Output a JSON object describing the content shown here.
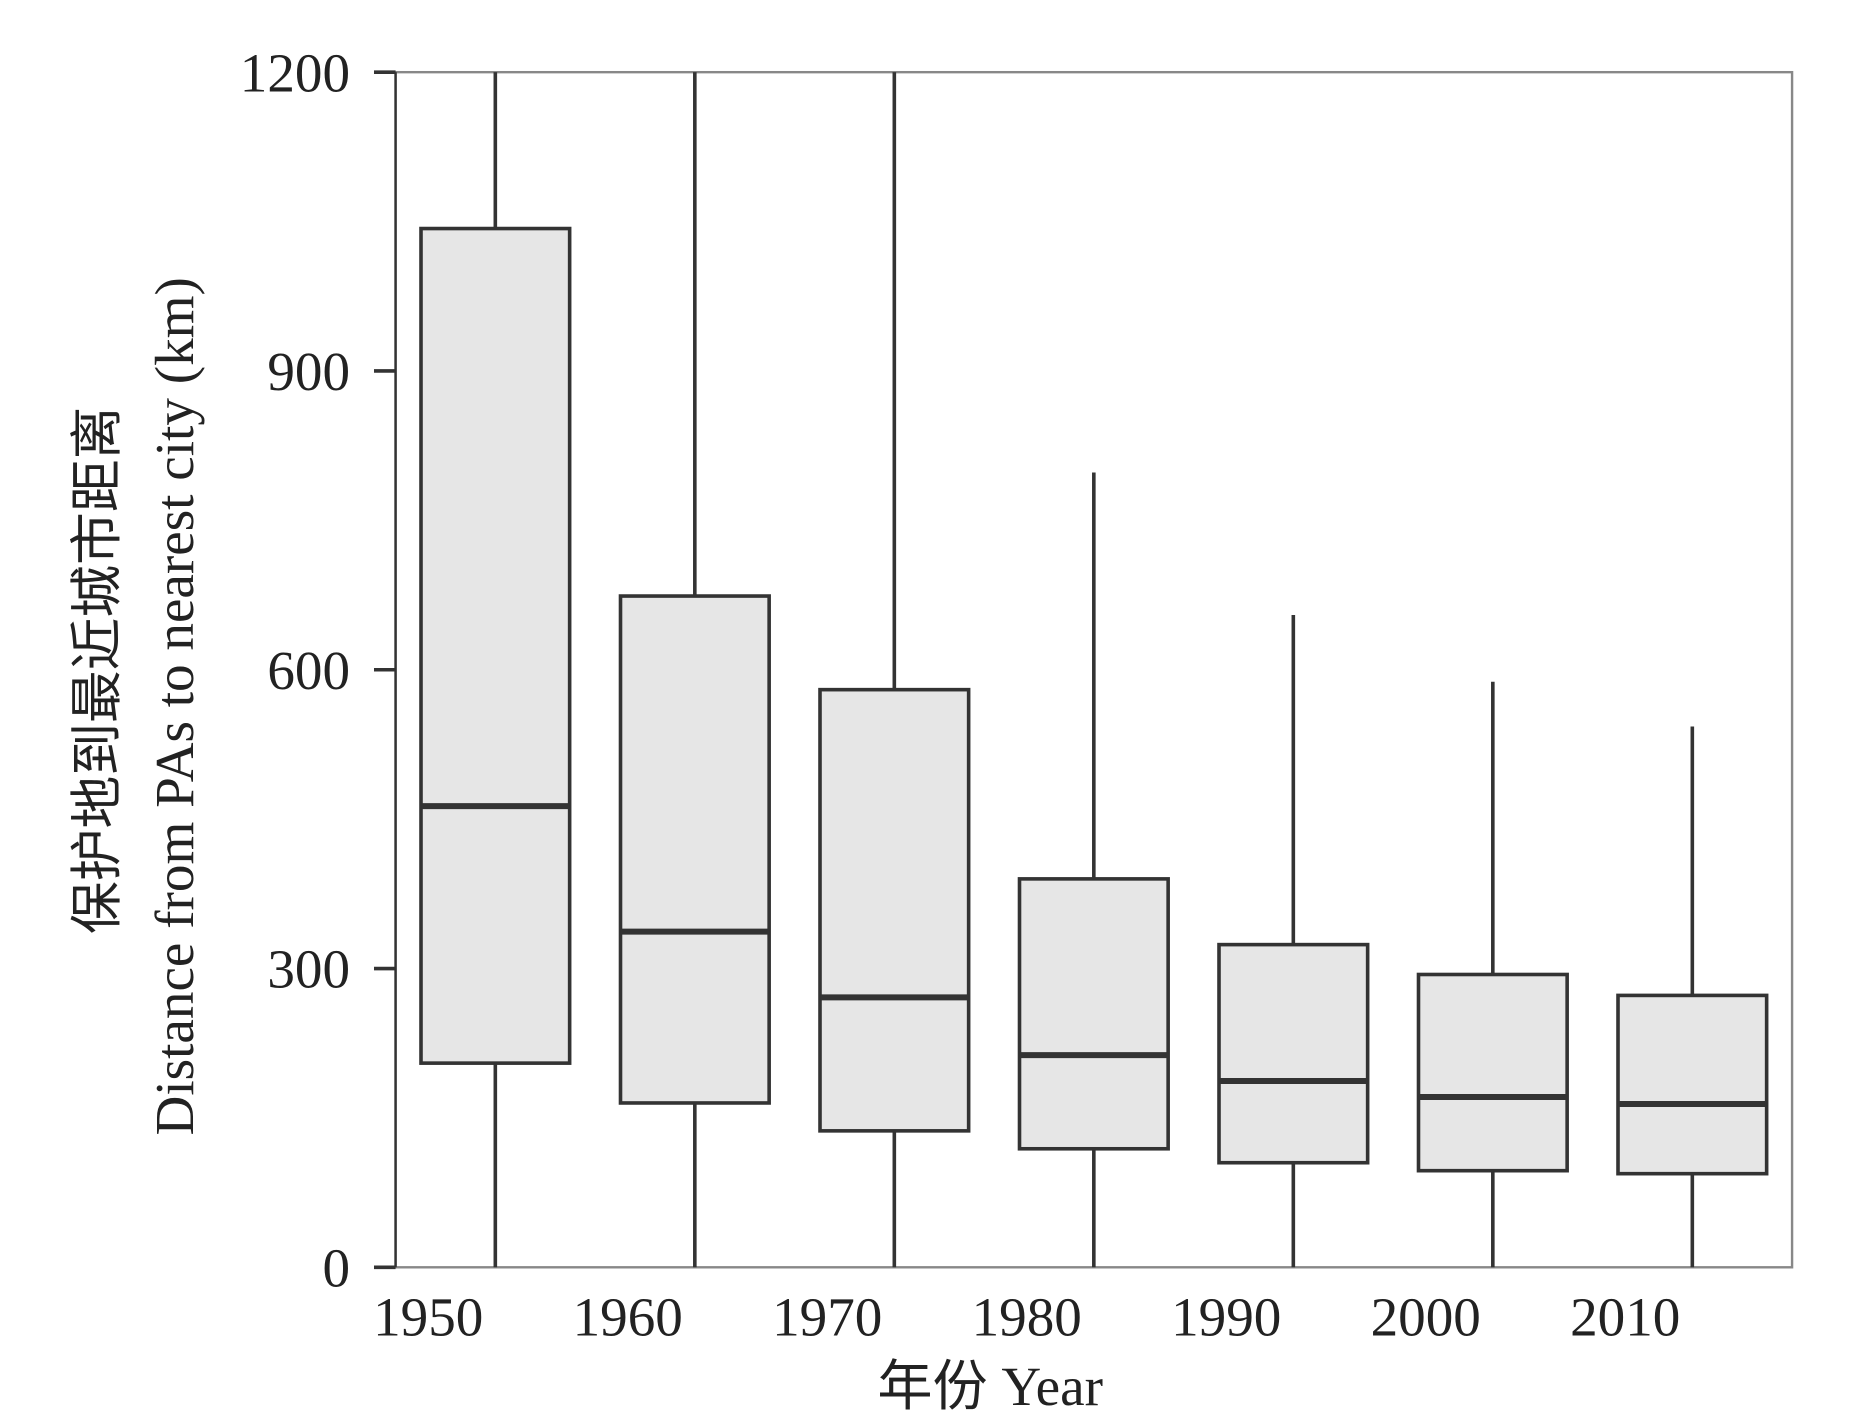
{
  "chart_data": {
    "type": "box",
    "x_label": "年份 Year",
    "y_label_lines": [
      "保护地到最近城市距离",
      "Distance from PAs to nearest city (km)"
    ],
    "categories": [
      "1950",
      "1960",
      "1970",
      "1980",
      "1990",
      "2000",
      "2010"
    ],
    "boxes": [
      {
        "min": 0,
        "q1": 205,
        "median": 463,
        "q3": 1043,
        "max": 1200
      },
      {
        "min": 0,
        "q1": 165,
        "median": 337,
        "q3": 674,
        "max": 1200
      },
      {
        "min": 0,
        "q1": 137,
        "median": 271,
        "q3": 580,
        "max": 1200
      },
      {
        "min": 0,
        "q1": 119,
        "median": 213,
        "q3": 390,
        "max": 798
      },
      {
        "min": 0,
        "q1": 105,
        "median": 187,
        "q3": 324,
        "max": 655
      },
      {
        "min": 0,
        "q1": 97,
        "median": 171,
        "q3": 294,
        "max": 588
      },
      {
        "min": 0,
        "q1": 94,
        "median": 164,
        "q3": 273,
        "max": 543
      }
    ],
    "color": "#e6e6e6",
    "ylim": [
      0,
      1200
    ],
    "yticks": [
      0,
      300,
      600,
      900,
      1200
    ]
  }
}
